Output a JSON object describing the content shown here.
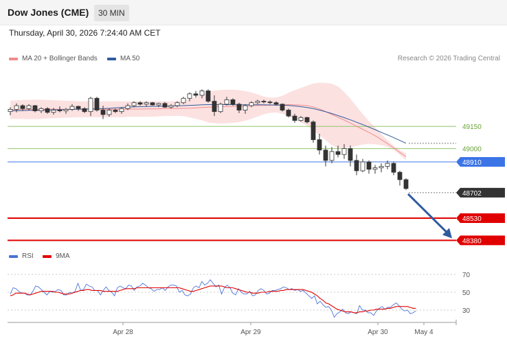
{
  "header": {
    "title": "Dow Jones (CME)",
    "timeframe": "30 MIN",
    "datetime": "Thursday, April 30, 2026 7:24:40 AM CET"
  },
  "legend": {
    "bb_label": "MA 20 + Bollinger Bands",
    "ma50_label": "MA 50",
    "credit": "Research © 2026 Trading Central"
  },
  "rsi_legend": {
    "rsi_label": "RSI",
    "ma_label": "9MA"
  },
  "colors": {
    "bb": "#f08c8c",
    "ma50": "#2f5b9e",
    "rsi": "#4a72d6",
    "ma9": "#e00000",
    "support": "#e00000",
    "resistance_green": "#8fc56a",
    "pivot_blue": "#3b74e6",
    "price": "#333333"
  },
  "chart_data": [
    {
      "type": "candlestick",
      "title": "Dow Jones (CME)",
      "interval": "30 MIN",
      "ylim": [
        48330,
        49450
      ],
      "x_ticks": [
        "Apr 28",
        "Apr 29",
        "Apr 30",
        "May 4"
      ],
      "last_price": "48702",
      "levels": [
        {
          "value": 49150,
          "label": "49150",
          "kind": "resistance"
        },
        {
          "value": 49000,
          "label": "49000",
          "kind": "resistance"
        },
        {
          "value": 48910,
          "label": "48910",
          "kind": "pivot"
        },
        {
          "value": 48530,
          "label": "48530",
          "kind": "support"
        },
        {
          "value": 48380,
          "label": "48380",
          "kind": "support"
        }
      ],
      "candles": [
        [
          49250,
          49280,
          49225,
          49265
        ],
        [
          49265,
          49305,
          49245,
          49290
        ],
        [
          49290,
          49300,
          49255,
          49270
        ],
        [
          49270,
          49300,
          49260,
          49290
        ],
        [
          49290,
          49295,
          49245,
          49255
        ],
        [
          49255,
          49280,
          49240,
          49270
        ],
        [
          49270,
          49280,
          49235,
          49245
        ],
        [
          49245,
          49275,
          49230,
          49260
        ],
        [
          49260,
          49285,
          49245,
          49255
        ],
        [
          49255,
          49275,
          49235,
          49265
        ],
        [
          49265,
          49300,
          49255,
          49285
        ],
        [
          49285,
          49290,
          49255,
          49270
        ],
        [
          49270,
          49280,
          49240,
          49250
        ],
        [
          49250,
          49350,
          49220,
          49340
        ],
        [
          49340,
          49350,
          49250,
          49260
        ],
        [
          49260,
          49290,
          49200,
          49230
        ],
        [
          49230,
          49270,
          49215,
          49260
        ],
        [
          49260,
          49270,
          49240,
          49250
        ],
        [
          49250,
          49280,
          49235,
          49270
        ],
        [
          49270,
          49305,
          49260,
          49290
        ],
        [
          49290,
          49320,
          49280,
          49310
        ],
        [
          49310,
          49320,
          49290,
          49300
        ],
        [
          49300,
          49320,
          49285,
          49310
        ],
        [
          49310,
          49315,
          49290,
          49295
        ],
        [
          49295,
          49310,
          49280,
          49305
        ],
        [
          49305,
          49315,
          49275,
          49280
        ],
        [
          49280,
          49300,
          49270,
          49290
        ],
        [
          49290,
          49320,
          49280,
          49310
        ],
        [
          49310,
          49350,
          49300,
          49340
        ],
        [
          49340,
          49380,
          49320,
          49370
        ],
        [
          49370,
          49390,
          49345,
          49360
        ],
        [
          49360,
          49400,
          49340,
          49390
        ],
        [
          49390,
          49400,
          49310,
          49320
        ],
        [
          49320,
          49360,
          49220,
          49250
        ],
        [
          49250,
          49310,
          49240,
          49300
        ],
        [
          49300,
          49350,
          49290,
          49330
        ],
        [
          49330,
          49340,
          49290,
          49300
        ],
        [
          49300,
          49310,
          49240,
          49260
        ],
        [
          49260,
          49300,
          49235,
          49290
        ],
        [
          49290,
          49320,
          49280,
          49310
        ],
        [
          49310,
          49330,
          49300,
          49320
        ],
        [
          49320,
          49330,
          49305,
          49315
        ],
        [
          49315,
          49325,
          49300,
          49310
        ],
        [
          49310,
          49320,
          49290,
          49300
        ],
        [
          49300,
          49305,
          49250,
          49260
        ],
        [
          49260,
          49270,
          49210,
          49220
        ],
        [
          49220,
          49235,
          49175,
          49190
        ],
        [
          49190,
          49220,
          49180,
          49210
        ],
        [
          49210,
          49215,
          49170,
          49180
        ],
        [
          49180,
          49190,
          49040,
          49060
        ],
        [
          49060,
          49100,
          48960,
          48990
        ],
        [
          48990,
          49020,
          48880,
          48920
        ],
        [
          48920,
          49010,
          48900,
          48980
        ],
        [
          48980,
          49020,
          48940,
          48960
        ],
        [
          48960,
          49030,
          48930,
          49000
        ],
        [
          49000,
          49020,
          48880,
          48920
        ],
        [
          48920,
          48960,
          48820,
          48850
        ],
        [
          48850,
          48930,
          48840,
          48910
        ],
        [
          48910,
          48920,
          48830,
          48860
        ],
        [
          48860,
          48890,
          48830,
          48870
        ],
        [
          48870,
          48900,
          48840,
          48880
        ],
        [
          48880,
          48920,
          48860,
          48900
        ],
        [
          48900,
          48910,
          48820,
          48840
        ],
        [
          48840,
          48850,
          48750,
          48790
        ],
        [
          48790,
          48800,
          48720,
          48730
        ]
      ],
      "ma50": [
        49255,
        49256,
        49257,
        49258,
        49259,
        49260,
        49261,
        49262,
        49263,
        49264,
        49265,
        49266,
        49267,
        49268,
        49269,
        49270,
        49272,
        49275,
        49278,
        49280,
        49282,
        49283,
        49284,
        49285,
        49286,
        49287,
        49288,
        49289,
        49290,
        49292,
        49294,
        49296,
        49297,
        49297,
        49297,
        49297,
        49297,
        49296,
        49296,
        49296,
        49296,
        49296,
        49295,
        49294,
        49293,
        49291,
        49288,
        49283,
        49277,
        49270,
        49260,
        49249,
        49237,
        49223,
        49209,
        49194,
        49178,
        49162,
        49145,
        49128,
        49110,
        49092,
        49074,
        49055,
        49036
      ],
      "ma20": [
        49262,
        49263,
        49264,
        49264,
        49265,
        49265,
        49266,
        49266,
        49266,
        49266,
        49266,
        49266,
        49266,
        49266,
        49266,
        49266,
        49266,
        49266,
        49266,
        49267,
        49267,
        49267,
        49268,
        49268,
        49269,
        49270,
        49270,
        49271,
        49272,
        49273,
        49275,
        49278,
        49280,
        49282,
        49283,
        49284,
        49286,
        49287,
        49288,
        49290,
        49291,
        49292,
        49293,
        49295,
        49296,
        49297,
        49296,
        49294,
        49290,
        49282,
        49268,
        49250,
        49230,
        49212,
        49193,
        49173,
        49151,
        49130,
        49109,
        49087,
        49061,
        49034,
        49005,
        48974,
        48945
      ],
      "bb_upper": [
        49324,
        49326,
        49328,
        49330,
        49331,
        49330,
        49328,
        49327,
        49325,
        49323,
        49322,
        49320,
        49320,
        49320,
        49320,
        49320,
        49320,
        49320,
        49320,
        49320,
        49320,
        49320,
        49320,
        49320,
        49320,
        49320,
        49320,
        49321,
        49325,
        49335,
        49349,
        49365,
        49384,
        49392,
        49397,
        49398,
        49398,
        49395,
        49388,
        49379,
        49366,
        49352,
        49345,
        49345,
        49357,
        49377,
        49395,
        49410,
        49425,
        49440,
        49445,
        49444,
        49438,
        49420,
        49383,
        49337,
        49284,
        49233,
        49186,
        49144,
        49099,
        49056,
        49020,
        48990,
        48967
      ],
      "bb_lower": [
        49200,
        49200,
        49200,
        49199,
        49199,
        49200,
        49204,
        49205,
        49207,
        49209,
        49210,
        49212,
        49212,
        49212,
        49212,
        49212,
        49212,
        49212,
        49212,
        49214,
        49214,
        49214,
        49216,
        49216,
        49218,
        49220,
        49220,
        49221,
        49219,
        49211,
        49201,
        49191,
        49176,
        49172,
        49169,
        49170,
        49174,
        49179,
        49188,
        49201,
        49216,
        49232,
        49241,
        49245,
        49235,
        49217,
        49197,
        49178,
        49155,
        49124,
        49091,
        49056,
        49022,
        49004,
        49003,
        49009,
        49018,
        49027,
        49032,
        49030,
        49023,
        49012,
        48990,
        48958,
        48923
      ],
      "projection": {
        "from": 48702,
        "to": 48380
      }
    },
    {
      "type": "line",
      "title": "RSI",
      "ylim": [
        10,
        80
      ],
      "y_ticks": [
        70,
        50,
        30
      ],
      "series": [
        {
          "name": "RSI",
          "values": [
            48,
            55,
            54,
            51,
            49,
            49,
            47,
            47,
            51,
            57,
            56,
            53,
            50,
            47,
            51,
            50,
            51,
            53,
            52,
            47,
            47,
            50,
            49,
            51,
            60,
            52,
            53,
            59,
            57,
            56,
            52,
            52,
            47,
            52,
            56,
            52,
            50,
            46,
            55,
            57,
            55,
            54,
            58,
            57,
            52,
            56,
            57,
            60,
            58,
            55,
            54,
            51,
            53,
            53,
            55,
            52,
            56,
            58,
            58,
            57,
            50,
            52,
            47,
            46,
            48,
            55,
            57,
            55,
            62,
            58,
            60,
            64,
            60,
            56,
            58,
            48,
            55,
            58,
            55,
            49,
            47,
            54,
            50,
            48,
            48,
            51,
            46,
            47,
            52,
            54,
            52,
            48,
            49,
            52,
            52,
            53,
            54,
            56,
            55,
            53,
            54,
            52,
            53,
            51,
            52,
            49,
            46,
            43,
            46,
            37,
            40,
            36,
            33,
            34,
            30,
            22,
            26,
            28,
            31,
            27,
            26,
            28,
            27,
            26,
            35,
            30,
            30,
            27,
            27,
            24,
            29,
            32,
            34,
            31,
            33,
            33,
            36,
            38,
            35,
            31,
            29,
            30,
            26,
            27,
            29
          ]
        },
        {
          "name": "9MA",
          "values": [
            46,
            47,
            49,
            49,
            49,
            49,
            48,
            47,
            48,
            49,
            50,
            51,
            51,
            51,
            51,
            51,
            50,
            50,
            49,
            48,
            48,
            48,
            49,
            50,
            51,
            52,
            52,
            53,
            53,
            52,
            52,
            52,
            52,
            51,
            51,
            51,
            51,
            51,
            51,
            52,
            53,
            54,
            54,
            54,
            54,
            55,
            55,
            55,
            55,
            55,
            55,
            55,
            55,
            55,
            55,
            55,
            55,
            55,
            55,
            55,
            55,
            54,
            53,
            52,
            51,
            51,
            52,
            53,
            54,
            55,
            56,
            57,
            57,
            57,
            57,
            57,
            56,
            55,
            55,
            55,
            54,
            53,
            52,
            51,
            50,
            50,
            49,
            49,
            49,
            50,
            50,
            50,
            51,
            51,
            51,
            51,
            52,
            52,
            53,
            53,
            53,
            53,
            53,
            53,
            53,
            52,
            51,
            50,
            48,
            46,
            43,
            41,
            38,
            37,
            35,
            33,
            31,
            30,
            29,
            28,
            28,
            28,
            27,
            27,
            28,
            28,
            29,
            29,
            30,
            30,
            31,
            31,
            31,
            31,
            32,
            32,
            33,
            34,
            34,
            34,
            34,
            34,
            33,
            32,
            32
          ]
        }
      ]
    }
  ]
}
